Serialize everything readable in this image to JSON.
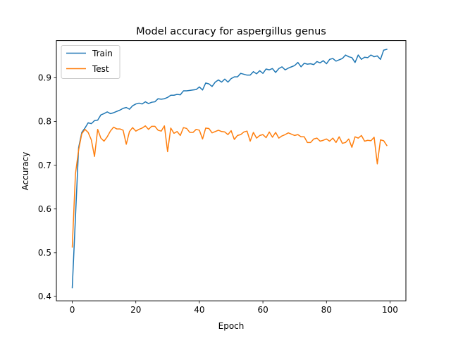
{
  "chart_data": {
    "type": "line",
    "title": "Model accuracy for aspergillus genus",
    "xlabel": "Epoch",
    "ylabel": "Accuracy",
    "xlim": [
      -5,
      105
    ],
    "ylim": [
      0.39,
      0.985
    ],
    "xticks": [
      0,
      20,
      40,
      60,
      80,
      100
    ],
    "yticks": [
      0.4,
      0.5,
      0.6,
      0.7,
      0.8,
      0.9
    ],
    "ytick_labels": [
      "0.4",
      "0.5",
      "0.6",
      "0.7",
      "0.8",
      "0.9"
    ],
    "grid": false,
    "legend_position": "upper-left",
    "x": [
      0,
      1,
      2,
      3,
      4,
      5,
      6,
      7,
      8,
      9,
      10,
      11,
      12,
      13,
      14,
      15,
      16,
      17,
      18,
      19,
      20,
      21,
      22,
      23,
      24,
      25,
      26,
      27,
      28,
      29,
      30,
      31,
      32,
      33,
      34,
      35,
      36,
      37,
      38,
      39,
      40,
      41,
      42,
      43,
      44,
      45,
      46,
      47,
      48,
      49,
      50,
      51,
      52,
      53,
      54,
      55,
      56,
      57,
      58,
      59,
      60,
      61,
      62,
      63,
      64,
      65,
      66,
      67,
      68,
      69,
      70,
      71,
      72,
      73,
      74,
      75,
      76,
      77,
      78,
      79,
      80,
      81,
      82,
      83,
      84,
      85,
      86,
      87,
      88,
      89,
      90,
      91,
      92,
      93,
      94,
      95,
      96,
      97,
      98,
      99
    ],
    "series": [
      {
        "name": "Train",
        "color": "#1f77b4",
        "values": [
          0.42,
          0.58,
          0.74,
          0.775,
          0.785,
          0.797,
          0.795,
          0.802,
          0.803,
          0.815,
          0.818,
          0.822,
          0.818,
          0.82,
          0.823,
          0.826,
          0.83,
          0.832,
          0.828,
          0.836,
          0.84,
          0.842,
          0.84,
          0.845,
          0.841,
          0.844,
          0.845,
          0.852,
          0.851,
          0.852,
          0.855,
          0.86,
          0.86,
          0.862,
          0.861,
          0.87,
          0.87,
          0.871,
          0.872,
          0.873,
          0.879,
          0.872,
          0.888,
          0.886,
          0.88,
          0.89,
          0.895,
          0.89,
          0.897,
          0.89,
          0.898,
          0.902,
          0.902,
          0.91,
          0.908,
          0.906,
          0.906,
          0.914,
          0.909,
          0.916,
          0.91,
          0.92,
          0.918,
          0.921,
          0.912,
          0.921,
          0.925,
          0.918,
          0.922,
          0.925,
          0.928,
          0.935,
          0.925,
          0.933,
          0.931,
          0.932,
          0.93,
          0.937,
          0.934,
          0.939,
          0.932,
          0.942,
          0.944,
          0.938,
          0.941,
          0.944,
          0.952,
          0.948,
          0.946,
          0.935,
          0.952,
          0.942,
          0.947,
          0.946,
          0.952,
          0.948,
          0.95,
          0.942,
          0.963,
          0.965
        ]
      },
      {
        "name": "Test",
        "color": "#ff7f0e",
        "values": [
          0.513,
          0.68,
          0.735,
          0.772,
          0.782,
          0.775,
          0.758,
          0.72,
          0.782,
          0.762,
          0.755,
          0.765,
          0.778,
          0.787,
          0.783,
          0.783,
          0.78,
          0.748,
          0.777,
          0.786,
          0.778,
          0.782,
          0.785,
          0.79,
          0.782,
          0.789,
          0.789,
          0.78,
          0.778,
          0.79,
          0.731,
          0.785,
          0.773,
          0.777,
          0.768,
          0.786,
          0.784,
          0.775,
          0.775,
          0.782,
          0.78,
          0.76,
          0.785,
          0.784,
          0.774,
          0.777,
          0.78,
          0.777,
          0.776,
          0.77,
          0.779,
          0.759,
          0.768,
          0.77,
          0.776,
          0.778,
          0.755,
          0.775,
          0.762,
          0.768,
          0.77,
          0.763,
          0.776,
          0.764,
          0.775,
          0.762,
          0.767,
          0.77,
          0.774,
          0.771,
          0.768,
          0.77,
          0.765,
          0.765,
          0.752,
          0.752,
          0.76,
          0.762,
          0.755,
          0.757,
          0.76,
          0.755,
          0.762,
          0.752,
          0.765,
          0.75,
          0.752,
          0.76,
          0.741,
          0.765,
          0.762,
          0.768,
          0.755,
          0.757,
          0.756,
          0.764,
          0.703,
          0.758,
          0.756,
          0.745
        ]
      }
    ]
  }
}
